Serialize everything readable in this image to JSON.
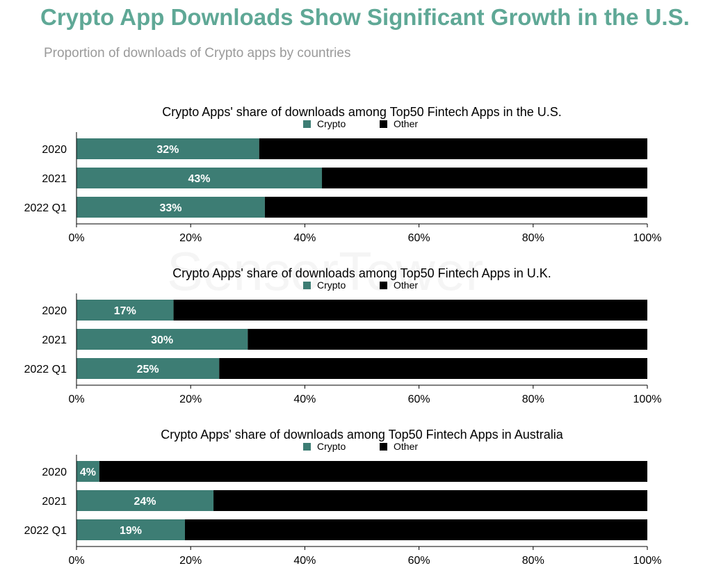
{
  "page": {
    "title": "Crypto App Downloads Show Significant Growth in the U.S.",
    "subtitle": "Proportion of downloads of Crypto apps by countries",
    "watermark": "SensorTower"
  },
  "colors": {
    "title": "#5fa896",
    "crypto": "#3d7d74",
    "other": "#000000",
    "bar_label": "#ffffff",
    "axis": "#000000"
  },
  "chart_data": [
    {
      "type": "bar",
      "orientation": "horizontal",
      "stacked": true,
      "title": "Crypto Apps' share of downloads among Top50 Fintech Apps in the U.S.",
      "categories": [
        "2020",
        "2021",
        "2022 Q1"
      ],
      "series": [
        {
          "name": "Crypto",
          "values": [
            32,
            43,
            33
          ]
        },
        {
          "name": "Other",
          "values": [
            68,
            57,
            67
          ]
        }
      ],
      "data_labels": [
        "32%",
        "43%",
        "33%"
      ],
      "xlim": [
        0,
        100
      ],
      "x_ticks": [
        "0%",
        "20%",
        "40%",
        "60%",
        "80%",
        "100%"
      ],
      "legend": "top-center",
      "grid": false
    },
    {
      "type": "bar",
      "orientation": "horizontal",
      "stacked": true,
      "title": "Crypto Apps' share of downloads among Top50 Fintech Apps in U.K.",
      "categories": [
        "2020",
        "2021",
        "2022 Q1"
      ],
      "series": [
        {
          "name": "Crypto",
          "values": [
            17,
            30,
            25
          ]
        },
        {
          "name": "Other",
          "values": [
            83,
            70,
            75
          ]
        }
      ],
      "data_labels": [
        "17%",
        "30%",
        "25%"
      ],
      "xlim": [
        0,
        100
      ],
      "x_ticks": [
        "0%",
        "20%",
        "40%",
        "60%",
        "80%",
        "100%"
      ],
      "legend": "top-center",
      "grid": false
    },
    {
      "type": "bar",
      "orientation": "horizontal",
      "stacked": true,
      "title": "Crypto Apps' share of downloads among Top50 Fintech Apps in Australia",
      "categories": [
        "2020",
        "2021",
        "2022 Q1"
      ],
      "series": [
        {
          "name": "Crypto",
          "values": [
            4,
            24,
            19
          ]
        },
        {
          "name": "Other",
          "values": [
            96,
            76,
            81
          ]
        }
      ],
      "data_labels": [
        "4%",
        "24%",
        "19%"
      ],
      "xlim": [
        0,
        100
      ],
      "x_ticks": [
        "0%",
        "20%",
        "40%",
        "60%",
        "80%",
        "100%"
      ],
      "legend": "top-center",
      "grid": false
    }
  ]
}
